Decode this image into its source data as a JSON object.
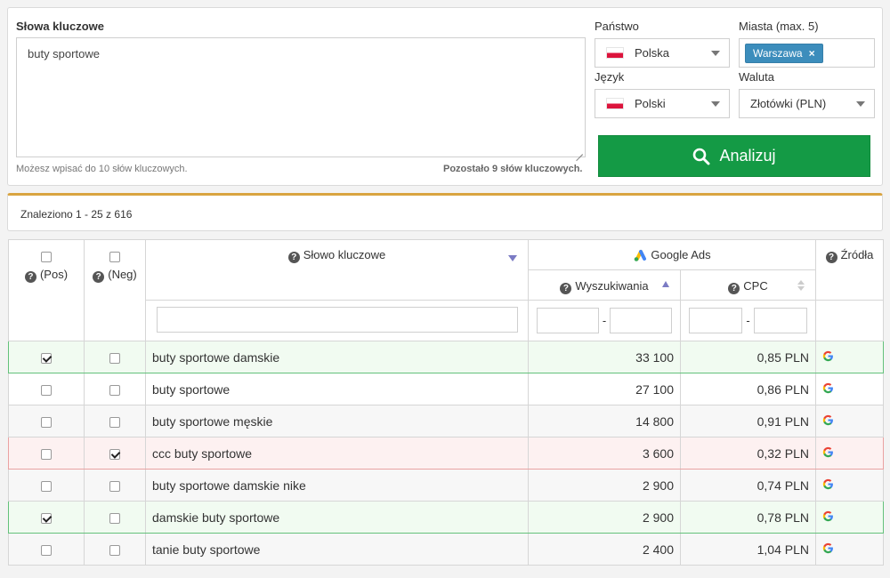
{
  "search": {
    "keywords_label": "Słowa kluczowe",
    "keywords_value": "buty sportowe",
    "hint_left": "Możesz wpisać do 10 słów kluczowych.",
    "hint_right": "Pozostało 9 słów kluczowych.",
    "country_label": "Państwo",
    "country_value": "Polska",
    "cities_label": "Miasta (max. 5)",
    "city_tag": "Warszawa",
    "city_tag_remove": "×",
    "language_label": "Język",
    "language_value": "Polski",
    "currency_label": "Waluta",
    "currency_value": "Złotówki (PLN)",
    "analyze_label": "Analizuj"
  },
  "results": {
    "summary": "Znaleziono 1 - 25 z 616"
  },
  "table": {
    "pos_label": "(Pos)",
    "neg_label": "(Neg)",
    "keyword_header": "Słowo kluczowe",
    "google_ads_header": "Google Ads",
    "searches_header": "Wyszukiwania",
    "cpc_header": "CPC",
    "sources_header": "Źródła",
    "range_sep": "-",
    "rows": [
      {
        "pos": true,
        "neg": false,
        "keyword": "buty sportowe damskie",
        "searches": "33 100",
        "cpc": "0,85 PLN",
        "state": "pos"
      },
      {
        "pos": false,
        "neg": false,
        "keyword": "buty sportowe",
        "searches": "27 100",
        "cpc": "0,86 PLN",
        "state": "plain"
      },
      {
        "pos": false,
        "neg": false,
        "keyword": "buty sportowe męskie",
        "searches": "14 800",
        "cpc": "0,91 PLN",
        "state": "alt"
      },
      {
        "pos": false,
        "neg": true,
        "keyword": "ccc buty sportowe",
        "searches": "3 600",
        "cpc": "0,32 PLN",
        "state": "neg"
      },
      {
        "pos": false,
        "neg": false,
        "keyword": "buty sportowe damskie nike",
        "searches": "2 900",
        "cpc": "0,74 PLN",
        "state": "alt"
      },
      {
        "pos": true,
        "neg": false,
        "keyword": "damskie buty sportowe",
        "searches": "2 900",
        "cpc": "0,78 PLN",
        "state": "pos"
      },
      {
        "pos": false,
        "neg": false,
        "keyword": "tanie buty sportowe",
        "searches": "2 400",
        "cpc": "1,04 PLN",
        "state": "alt"
      }
    ],
    "source_icon": "google-g-icon"
  },
  "colors": {
    "accent_green": "#149a45",
    "tag_blue": "#3c8dbc",
    "result_bar_top": "#d9a441",
    "positive_row": "#f1fbf1",
    "negative_row": "#fdf1f1"
  }
}
